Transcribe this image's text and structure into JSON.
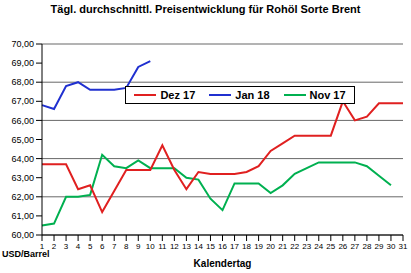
{
  "chart_data": {
    "type": "line",
    "title": "Tägl. durchschnittl. Preisentwicklung für Rohöl Sorte Brent",
    "x_label": "Kalendertag",
    "y_label": "USD/Barrel",
    "categories": [
      "1",
      "2",
      "3",
      "4",
      "5",
      "6",
      "7",
      "8",
      "9",
      "10",
      "11",
      "12",
      "13",
      "14",
      "15",
      "16",
      "17",
      "18",
      "19",
      "20",
      "21",
      "22",
      "23",
      "24",
      "25",
      "26",
      "27",
      "28",
      "29",
      "30",
      "31"
    ],
    "series": [
      {
        "name": "Nov 17",
        "color": "#00b050",
        "values": [
          60.5,
          60.6,
          62.0,
          62.0,
          62.1,
          64.2,
          63.6,
          63.5,
          63.9,
          63.5,
          63.5,
          63.5,
          63.0,
          62.9,
          61.9,
          61.3,
          62.7,
          62.7,
          62.7,
          62.2,
          62.6,
          63.2,
          63.5,
          63.8,
          63.8,
          63.8,
          63.8,
          63.6,
          63.1,
          62.6,
          null
        ]
      },
      {
        "name": "Dez 17",
        "color": "#e02020",
        "values": [
          63.7,
          63.7,
          63.7,
          62.4,
          62.6,
          61.2,
          62.3,
          63.4,
          63.4,
          63.4,
          64.7,
          63.4,
          62.4,
          63.3,
          63.2,
          63.2,
          63.2,
          63.3,
          63.6,
          64.4,
          64.8,
          65.2,
          65.2,
          65.2,
          65.2,
          67.0,
          66.0,
          66.2,
          66.9,
          66.9,
          66.9
        ]
      },
      {
        "name": "Jan 18",
        "color": "#2030d0",
        "values": [
          66.8,
          66.6,
          67.8,
          68.0,
          67.6,
          67.6,
          67.6,
          67.7,
          68.8,
          69.1,
          null,
          null,
          null,
          null,
          null,
          null,
          null,
          null,
          null,
          null,
          null,
          null,
          null,
          null,
          null,
          null,
          null,
          null,
          null,
          null,
          null
        ]
      }
    ],
    "ylim": [
      60,
      70
    ],
    "yticks": [
      {
        "value": 60,
        "label": "60,00"
      },
      {
        "value": 61,
        "label": "61,00"
      },
      {
        "value": 62,
        "label": "62,00"
      },
      {
        "value": 63,
        "label": "63,00"
      },
      {
        "value": 64,
        "label": "64,00"
      },
      {
        "value": 65,
        "label": "65,00"
      },
      {
        "value": 66,
        "label": "66,00"
      },
      {
        "value": 67,
        "label": "67,00"
      },
      {
        "value": 68,
        "label": "68,00"
      },
      {
        "value": 69,
        "label": "69,00"
      },
      {
        "value": 70,
        "label": "70,00"
      }
    ],
    "grid": true,
    "legend": "top"
  }
}
